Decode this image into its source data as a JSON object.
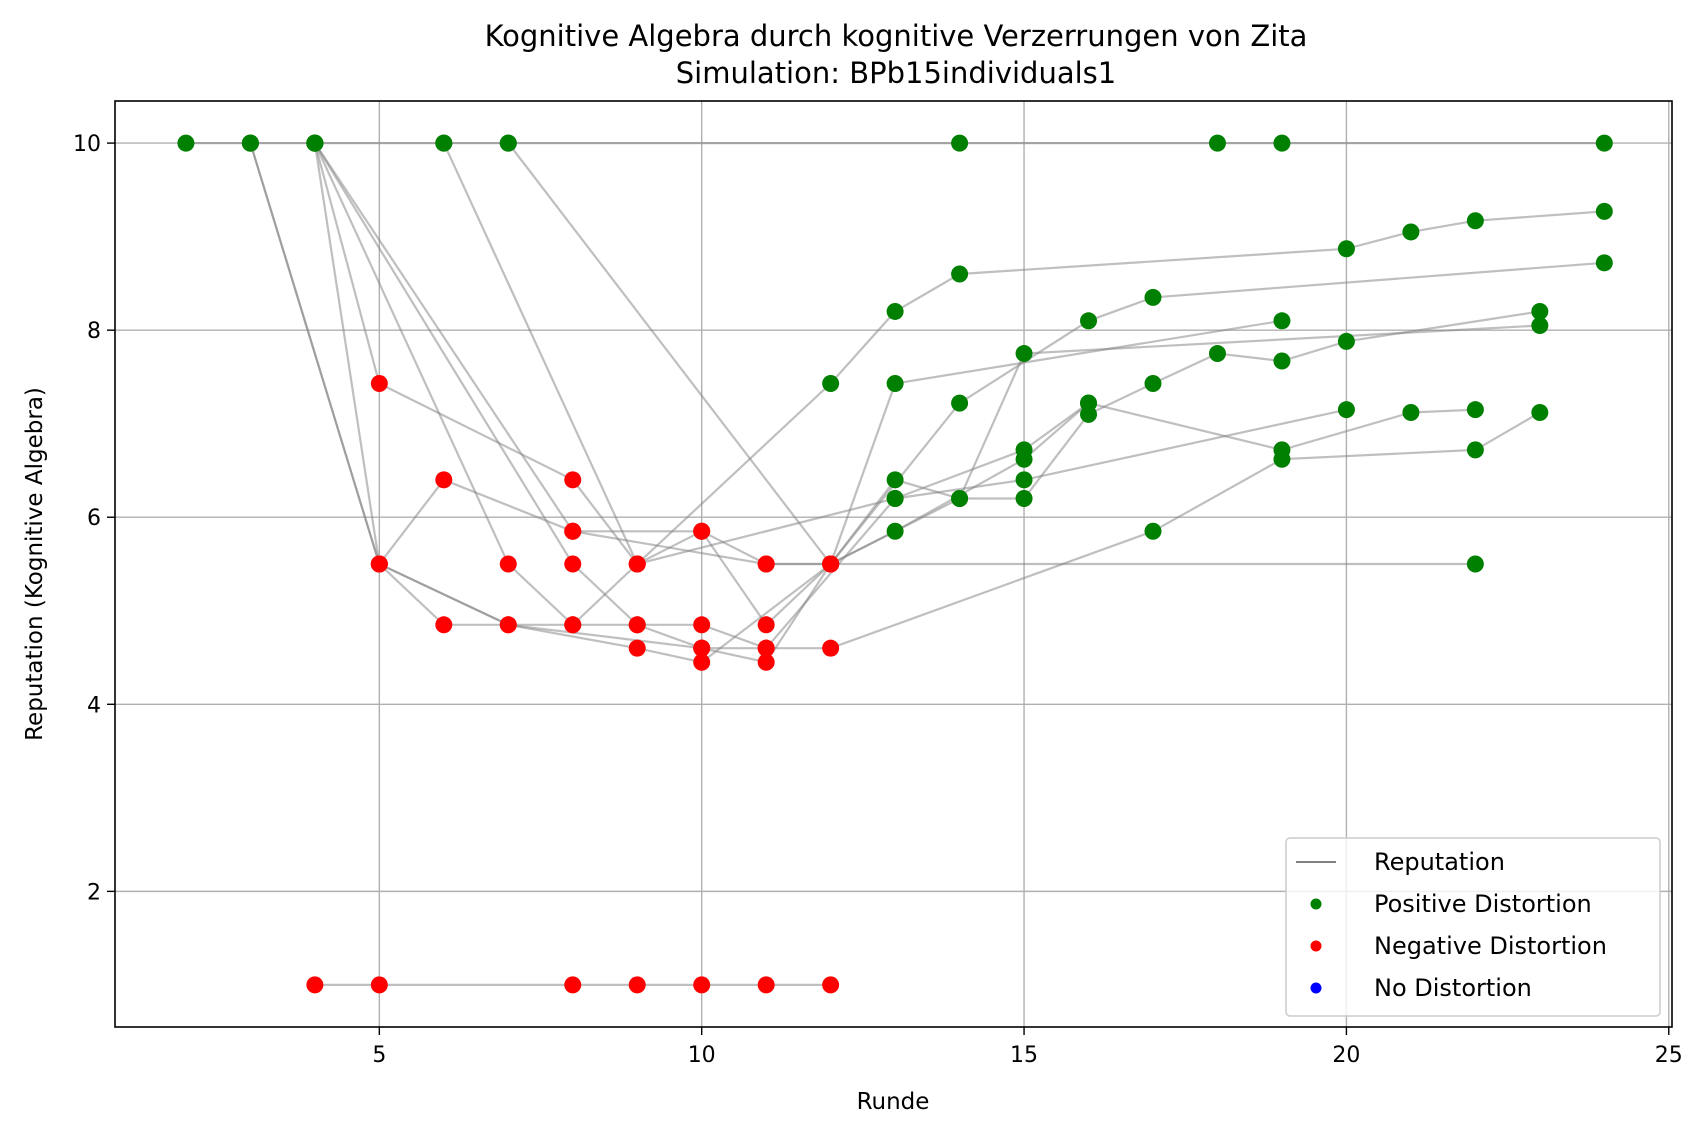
{
  "chart_data": {
    "type": "line",
    "title": "Kognitive Algebra durch kognitive Verzerrungen von Zita",
    "subtitle": "Simulation: BPb15individuals1",
    "xlabel": "Runde",
    "ylabel": "Reputation (Kognitive Algebra)",
    "xlim": [
      0.9,
      25.05
    ],
    "ylim": [
      0.55,
      10.45
    ],
    "xticks": [
      5,
      10,
      15,
      20,
      25
    ],
    "yticks": [
      2,
      4,
      6,
      8,
      10
    ],
    "grid": true,
    "legend_position": "lower-right",
    "legend": [
      {
        "label": "Reputation",
        "kind": "line",
        "color": "#808080"
      },
      {
        "label": "Positive Distortion",
        "kind": "dot",
        "color": "#008000"
      },
      {
        "label": "Negative Distortion",
        "kind": "dot",
        "color": "#ff0000"
      },
      {
        "label": "No Distortion",
        "kind": "dot",
        "color": "#0000ff"
      }
    ],
    "colors": {
      "positive": "#008000",
      "negative": "#ff0000",
      "none": "#0000ff",
      "line": "#808080",
      "grid": "#b0b0b0"
    },
    "series": [
      {
        "points": [
          [
            2,
            10,
            "p"
          ],
          [
            3,
            10,
            "p"
          ],
          [
            4,
            10,
            "p"
          ],
          [
            6,
            10,
            "p"
          ],
          [
            7,
            10,
            "p"
          ],
          [
            14,
            10,
            "p"
          ],
          [
            18,
            10,
            "p"
          ],
          [
            19,
            10,
            "p"
          ],
          [
            24,
            10,
            "p"
          ]
        ]
      },
      {
        "points": [
          [
            3,
            10,
            "p"
          ],
          [
            5,
            5.5,
            "n"
          ],
          [
            6,
            4.85,
            "n"
          ],
          [
            8,
            4.85,
            "n"
          ],
          [
            9,
            4.85,
            "n"
          ],
          [
            10,
            4.85,
            "n"
          ],
          [
            11,
            4.6,
            "n"
          ],
          [
            12,
            4.6,
            "n"
          ],
          [
            17,
            5.85,
            "p"
          ],
          [
            19,
            6.62,
            "p"
          ],
          [
            22,
            6.72,
            "p"
          ],
          [
            23,
            7.12,
            "p"
          ]
        ]
      },
      {
        "points": [
          [
            3,
            10,
            "p"
          ],
          [
            5,
            5.5,
            "n"
          ],
          [
            7,
            4.85,
            "n"
          ],
          [
            9,
            4.6,
            "n"
          ],
          [
            10,
            4.45,
            "n"
          ],
          [
            12,
            5.5,
            "n"
          ],
          [
            13,
            5.85,
            "p"
          ],
          [
            15,
            6.62,
            "p"
          ],
          [
            16,
            7.22,
            "p"
          ]
        ]
      },
      {
        "points": [
          [
            4,
            10,
            "p"
          ],
          [
            7,
            5.5,
            "n"
          ],
          [
            8,
            4.85,
            "n"
          ],
          [
            9,
            5.5,
            "n"
          ],
          [
            10,
            5.85,
            "n"
          ],
          [
            11,
            5.5,
            "n"
          ],
          [
            12,
            5.5,
            "n"
          ],
          [
            14,
            7.22,
            "p"
          ],
          [
            16,
            8.1,
            "p"
          ],
          [
            17,
            8.35,
            "p"
          ],
          [
            24,
            8.72,
            "p"
          ]
        ]
      },
      {
        "points": [
          [
            4,
            10,
            "p"
          ],
          [
            5,
            7.43,
            "n"
          ],
          [
            8,
            6.4,
            "n"
          ],
          [
            9,
            5.5,
            "n"
          ],
          [
            12,
            7.43,
            "p"
          ],
          [
            13,
            8.2,
            "p"
          ],
          [
            14,
            8.6,
            "p"
          ],
          [
            20,
            8.87,
            "p"
          ],
          [
            21,
            9.05,
            "p"
          ],
          [
            22,
            9.17,
            "p"
          ],
          [
            24,
            9.27,
            "p"
          ]
        ]
      },
      {
        "points": [
          [
            4,
            10,
            "p"
          ],
          [
            8,
            5.5,
            "n"
          ],
          [
            9,
            4.85,
            "n"
          ],
          [
            10,
            4.6,
            "n"
          ],
          [
            11,
            4.45,
            "n"
          ],
          [
            12,
            5.5,
            "n"
          ],
          [
            13,
            7.43,
            "p"
          ],
          [
            19,
            8.1,
            "p"
          ]
        ]
      },
      {
        "points": [
          [
            4,
            10,
            "p"
          ],
          [
            8,
            5.85,
            "n"
          ],
          [
            10,
            5.85,
            "n"
          ],
          [
            11,
            4.85,
            "n"
          ],
          [
            12,
            5.5,
            "n"
          ],
          [
            13,
            6.4,
            "p"
          ],
          [
            14,
            6.2,
            "p"
          ],
          [
            15,
            6.2,
            "p"
          ],
          [
            16,
            7.1,
            "p"
          ],
          [
            17,
            7.43,
            "p"
          ],
          [
            18,
            7.75,
            "p"
          ],
          [
            19,
            7.67,
            "p"
          ],
          [
            20,
            7.88,
            "p"
          ],
          [
            23,
            8.2,
            "p"
          ]
        ]
      },
      {
        "points": [
          [
            4,
            10,
            "p"
          ],
          [
            5,
            5.5,
            "n"
          ],
          [
            7,
            4.85,
            "n"
          ],
          [
            10,
            4.6,
            "n"
          ],
          [
            11,
            4.6,
            "n"
          ],
          [
            13,
            6.2,
            "p"
          ],
          [
            15,
            6.72,
            "p"
          ],
          [
            16,
            7.22,
            "p"
          ],
          [
            19,
            6.72,
            "p"
          ],
          [
            21,
            7.12,
            "p"
          ],
          [
            22,
            7.15,
            "p"
          ]
        ]
      },
      {
        "points": [
          [
            6,
            10,
            "p"
          ],
          [
            9,
            5.5,
            "n"
          ],
          [
            13,
            6.2,
            "p"
          ],
          [
            15,
            6.4,
            "p"
          ],
          [
            20,
            7.15,
            "p"
          ]
        ]
      },
      {
        "points": [
          [
            7,
            10,
            "p"
          ],
          [
            12,
            5.5,
            "n"
          ],
          [
            14,
            6.2,
            "p"
          ],
          [
            15,
            7.75,
            "p"
          ],
          [
            23,
            8.05,
            "p"
          ]
        ]
      },
      {
        "points": [
          [
            5,
            5.5,
            "n"
          ],
          [
            6,
            6.4,
            "n"
          ],
          [
            8,
            5.85,
            "n"
          ],
          [
            11,
            5.5,
            "n"
          ],
          [
            12,
            5.5,
            "n"
          ],
          [
            22,
            5.5,
            "p"
          ]
        ]
      },
      {
        "points": [
          [
            4,
            1,
            "n"
          ],
          [
            5,
            1,
            "n"
          ],
          [
            8,
            1,
            "n"
          ],
          [
            9,
            1,
            "n"
          ],
          [
            10,
            1,
            "n"
          ],
          [
            11,
            1,
            "n"
          ],
          [
            12,
            1,
            "n"
          ]
        ]
      }
    ]
  }
}
